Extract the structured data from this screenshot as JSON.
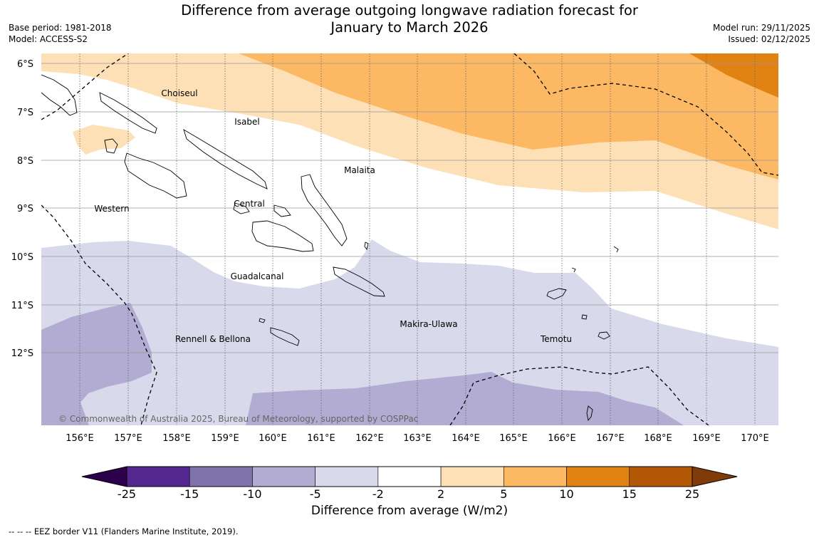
{
  "title": "Difference from average outgoing longwave radiation forecast for\nJanuary to March 2026",
  "meta_left": {
    "base_period": "Base period: 1981-2018",
    "model": "Model: ACCESS-S2"
  },
  "meta_right": {
    "model_run": "Model run: 29/11/2025",
    "issued": "Issued: 02/12/2025"
  },
  "lat_labels": [
    "6°S",
    "7°S",
    "8°S",
    "9°S",
    "10°S",
    "11°S",
    "12°S"
  ],
  "lon_labels": [
    "156°E",
    "157°E",
    "158°E",
    "159°E",
    "160°E",
    "161°E",
    "162°E",
    "163°E",
    "164°E",
    "165°E",
    "166°E",
    "167°E",
    "168°E",
    "169°E",
    "170°E"
  ],
  "places": [
    {
      "name": "Choiseul"
    },
    {
      "name": "Isabel"
    },
    {
      "name": "Malaita"
    },
    {
      "name": "Western"
    },
    {
      "name": "Central"
    },
    {
      "name": "Guadalcanal"
    },
    {
      "name": "Makira-Ulawa"
    },
    {
      "name": "Rennell & Bellona"
    },
    {
      "name": "Temotu"
    }
  ],
  "copyright": "© Commonwealth of Australia 2025, Bureau of Meteorology, supported by COSPPac",
  "colorbar": {
    "ticks": [
      "-25",
      "-15",
      "-10",
      "-5",
      "-2",
      "2",
      "5",
      "10",
      "15",
      "25"
    ],
    "colors": [
      "#54278f",
      "#8073ac",
      "#b2abd2",
      "#d8daeb",
      "#ffffff",
      "#fee0b6",
      "#fdb863",
      "#e08214",
      "#b35806"
    ],
    "under_color": "#2d004b",
    "over_color": "#7f3b08",
    "label": "Difference from average (W/m2)"
  },
  "eez_note": "--  --  -- EEZ border V11 (Flanders Marine Institute, 2019)."
}
